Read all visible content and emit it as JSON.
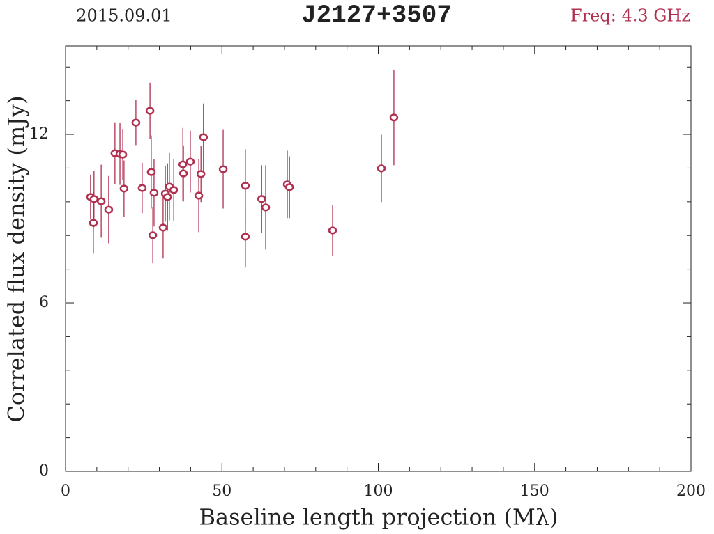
{
  "chart_data": {
    "type": "scatter",
    "title": "J2127+3507",
    "date": "2015.09.01",
    "frequency": "Freq: 4.3 GHz",
    "x_label": "Baseline length projection (Mλ)",
    "y_label": "Correlated flux density (mJy)",
    "xlim": [
      0,
      200
    ],
    "xticks": [
      0,
      50,
      100,
      150,
      200
    ],
    "xminorticks": [
      10,
      20,
      30,
      40,
      60,
      70,
      80,
      90,
      110,
      120,
      130,
      140,
      160,
      170,
      180,
      190
    ],
    "ylim": [
      0,
      15.15
    ],
    "yticks": [
      0,
      6,
      12
    ],
    "yminorticks": [
      1.2,
      2.4,
      3.6,
      4.8,
      7.2,
      8.4,
      9.6,
      10.8,
      13.2,
      14.4
    ],
    "series": [
      {
        "color": "#b03050",
        "x": [
          8.0,
          9.1,
          8.9,
          11.4,
          13.8,
          15.8,
          17.4,
          18.3,
          18.7,
          22.5,
          24.5,
          27.0,
          27.4,
          27.9,
          28.3,
          31.2,
          31.9,
          32.6,
          33.2,
          34.6,
          37.5,
          37.7,
          39.9,
          42.6,
          43.3,
          44.1,
          50.4,
          57.5,
          57.5,
          62.7,
          64.0,
          70.9,
          71.6,
          85.4,
          101.0,
          105.0
        ],
        "values": [
          9.77,
          9.7,
          8.85,
          9.62,
          9.32,
          11.33,
          11.3,
          11.28,
          10.07,
          12.42,
          10.09,
          12.84,
          10.66,
          8.41,
          9.92,
          8.68,
          9.89,
          9.77,
          10.14,
          10.02,
          10.93,
          10.61,
          11.03,
          9.82,
          10.59,
          11.9,
          10.76,
          10.17,
          8.36,
          9.7,
          9.4,
          10.22,
          10.12,
          8.58,
          10.79,
          12.6
        ],
        "errors": [
          0.8,
          1.0,
          1.1,
          1.3,
          1.2,
          1.1,
          1.1,
          0.9,
          1.0,
          0.8,
          0.9,
          1.0,
          1.3,
          1.0,
          1.2,
          1.1,
          1.0,
          1.2,
          1.2,
          1.1,
          1.3,
          1.0,
          1.1,
          1.3,
          1.0,
          1.2,
          1.4,
          1.3,
          1.1,
          1.2,
          1.5,
          1.2,
          1.1,
          0.9,
          1.2,
          1.7
        ]
      }
    ]
  }
}
